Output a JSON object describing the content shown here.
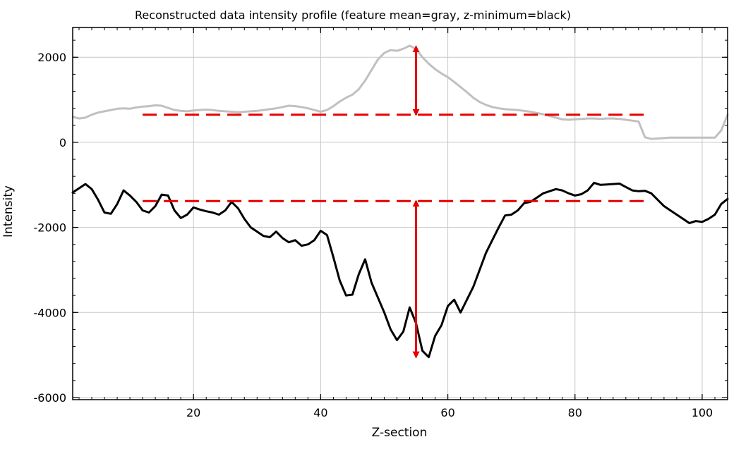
{
  "chart_data": {
    "type": "line",
    "title": "Reconstructed data intensity profile (feature mean=gray, z-minimum=black)",
    "xlabel": "Z-section",
    "ylabel": "Intensity",
    "xlim": [
      1,
      104
    ],
    "ylim": [
      -6050,
      2700
    ],
    "xticks": [
      20,
      40,
      60,
      80,
      100
    ],
    "yticks": [
      -6000,
      -4000,
      -2000,
      0,
      2000
    ],
    "x_minor_step": 2,
    "y_minor_step": 400,
    "grid": true,
    "series": [
      {
        "key": "feature-mean",
        "color": "#c0c0c0",
        "points": [
          [
            1,
            600
          ],
          [
            2,
            560
          ],
          [
            3,
            580
          ],
          [
            4,
            650
          ],
          [
            5,
            700
          ],
          [
            6,
            730
          ],
          [
            7,
            760
          ],
          [
            8,
            790
          ],
          [
            9,
            800
          ],
          [
            10,
            790
          ],
          [
            11,
            820
          ],
          [
            12,
            840
          ],
          [
            13,
            850
          ],
          [
            14,
            870
          ],
          [
            15,
            860
          ],
          [
            16,
            810
          ],
          [
            17,
            760
          ],
          [
            18,
            740
          ],
          [
            19,
            730
          ],
          [
            20,
            750
          ],
          [
            21,
            760
          ],
          [
            22,
            770
          ],
          [
            23,
            760
          ],
          [
            24,
            740
          ],
          [
            25,
            730
          ],
          [
            26,
            720
          ],
          [
            27,
            710
          ],
          [
            28,
            720
          ],
          [
            29,
            730
          ],
          [
            30,
            740
          ],
          [
            31,
            760
          ],
          [
            32,
            780
          ],
          [
            33,
            800
          ],
          [
            34,
            830
          ],
          [
            35,
            860
          ],
          [
            36,
            850
          ],
          [
            37,
            830
          ],
          [
            38,
            800
          ],
          [
            39,
            760
          ],
          [
            40,
            720
          ],
          [
            41,
            760
          ],
          [
            42,
            850
          ],
          [
            43,
            960
          ],
          [
            44,
            1050
          ],
          [
            45,
            1120
          ],
          [
            46,
            1250
          ],
          [
            47,
            1450
          ],
          [
            48,
            1700
          ],
          [
            49,
            1950
          ],
          [
            50,
            2100
          ],
          [
            51,
            2170
          ],
          [
            52,
            2150
          ],
          [
            53,
            2200
          ],
          [
            54,
            2270
          ],
          [
            55,
            2200
          ],
          [
            56,
            2000
          ],
          [
            57,
            1850
          ],
          [
            58,
            1720
          ],
          [
            59,
            1620
          ],
          [
            60,
            1530
          ],
          [
            61,
            1420
          ],
          [
            62,
            1300
          ],
          [
            63,
            1180
          ],
          [
            64,
            1050
          ],
          [
            65,
            950
          ],
          [
            66,
            880
          ],
          [
            67,
            830
          ],
          [
            68,
            800
          ],
          [
            69,
            780
          ],
          [
            70,
            770
          ],
          [
            71,
            760
          ],
          [
            72,
            740
          ],
          [
            73,
            720
          ],
          [
            74,
            690
          ],
          [
            75,
            660
          ],
          [
            76,
            620
          ],
          [
            77,
            580
          ],
          [
            78,
            540
          ],
          [
            79,
            530
          ],
          [
            80,
            540
          ],
          [
            81,
            550
          ],
          [
            82,
            560
          ],
          [
            83,
            560
          ],
          [
            84,
            550
          ],
          [
            85,
            560
          ],
          [
            86,
            560
          ],
          [
            87,
            550
          ],
          [
            88,
            530
          ],
          [
            89,
            510
          ],
          [
            90,
            490
          ],
          [
            91,
            120
          ],
          [
            92,
            80
          ],
          [
            93,
            90
          ],
          [
            94,
            100
          ],
          [
            95,
            110
          ],
          [
            96,
            110
          ],
          [
            97,
            110
          ],
          [
            98,
            110
          ],
          [
            99,
            110
          ],
          [
            100,
            110
          ],
          [
            101,
            110
          ],
          [
            102,
            110
          ],
          [
            103,
            280
          ],
          [
            104,
            650
          ]
        ]
      },
      {
        "key": "z-minimum",
        "color": "#000000",
        "points": [
          [
            1,
            -1180
          ],
          [
            2,
            -1080
          ],
          [
            3,
            -980
          ],
          [
            4,
            -1100
          ],
          [
            5,
            -1350
          ],
          [
            6,
            -1650
          ],
          [
            7,
            -1680
          ],
          [
            8,
            -1450
          ],
          [
            9,
            -1130
          ],
          [
            10,
            -1250
          ],
          [
            11,
            -1400
          ],
          [
            12,
            -1600
          ],
          [
            13,
            -1650
          ],
          [
            14,
            -1500
          ],
          [
            15,
            -1230
          ],
          [
            16,
            -1250
          ],
          [
            17,
            -1600
          ],
          [
            18,
            -1780
          ],
          [
            19,
            -1700
          ],
          [
            20,
            -1530
          ],
          [
            21,
            -1580
          ],
          [
            22,
            -1620
          ],
          [
            23,
            -1650
          ],
          [
            24,
            -1700
          ],
          [
            25,
            -1600
          ],
          [
            26,
            -1400
          ],
          [
            27,
            -1550
          ],
          [
            28,
            -1800
          ],
          [
            29,
            -2000
          ],
          [
            30,
            -2100
          ],
          [
            31,
            -2200
          ],
          [
            32,
            -2230
          ],
          [
            33,
            -2100
          ],
          [
            34,
            -2250
          ],
          [
            35,
            -2350
          ],
          [
            36,
            -2300
          ],
          [
            37,
            -2430
          ],
          [
            38,
            -2400
          ],
          [
            39,
            -2300
          ],
          [
            40,
            -2080
          ],
          [
            41,
            -2180
          ],
          [
            42,
            -2700
          ],
          [
            43,
            -3250
          ],
          [
            44,
            -3600
          ],
          [
            45,
            -3580
          ],
          [
            46,
            -3100
          ],
          [
            47,
            -2750
          ],
          [
            48,
            -3300
          ],
          [
            49,
            -3650
          ],
          [
            50,
            -4000
          ],
          [
            51,
            -4400
          ],
          [
            52,
            -4650
          ],
          [
            53,
            -4450
          ],
          [
            54,
            -3880
          ],
          [
            55,
            -4250
          ],
          [
            56,
            -4900
          ],
          [
            57,
            -5050
          ],
          [
            58,
            -4550
          ],
          [
            59,
            -4300
          ],
          [
            60,
            -3850
          ],
          [
            61,
            -3700
          ],
          [
            62,
            -4000
          ],
          [
            63,
            -3700
          ],
          [
            64,
            -3400
          ],
          [
            65,
            -3000
          ],
          [
            66,
            -2600
          ],
          [
            67,
            -2300
          ],
          [
            68,
            -2000
          ],
          [
            69,
            -1720
          ],
          [
            70,
            -1700
          ],
          [
            71,
            -1600
          ],
          [
            72,
            -1430
          ],
          [
            73,
            -1400
          ],
          [
            74,
            -1300
          ],
          [
            75,
            -1200
          ],
          [
            76,
            -1150
          ],
          [
            77,
            -1100
          ],
          [
            78,
            -1130
          ],
          [
            79,
            -1200
          ],
          [
            80,
            -1250
          ],
          [
            81,
            -1220
          ],
          [
            82,
            -1130
          ],
          [
            83,
            -950
          ],
          [
            84,
            -1000
          ],
          [
            85,
            -990
          ],
          [
            86,
            -980
          ],
          [
            87,
            -970
          ],
          [
            88,
            -1050
          ],
          [
            89,
            -1130
          ],
          [
            90,
            -1150
          ],
          [
            91,
            -1140
          ],
          [
            92,
            -1200
          ],
          [
            93,
            -1350
          ],
          [
            94,
            -1500
          ],
          [
            95,
            -1600
          ],
          [
            96,
            -1700
          ],
          [
            97,
            -1800
          ],
          [
            98,
            -1900
          ],
          [
            99,
            -1850
          ],
          [
            100,
            -1870
          ],
          [
            101,
            -1800
          ],
          [
            102,
            -1700
          ],
          [
            103,
            -1450
          ],
          [
            104,
            -1330
          ]
        ]
      }
    ],
    "annotations": {
      "color": "#e60000",
      "dashed_lines": [
        {
          "x1": 12,
          "x2": 91,
          "y": 650
        },
        {
          "x1": 12,
          "x2": 91,
          "y": -1380
        }
      ],
      "double_arrows": [
        {
          "x": 55,
          "y1": 2250,
          "y2": 650
        },
        {
          "x": 55,
          "y1": -1380,
          "y2": -5050
        }
      ]
    }
  }
}
